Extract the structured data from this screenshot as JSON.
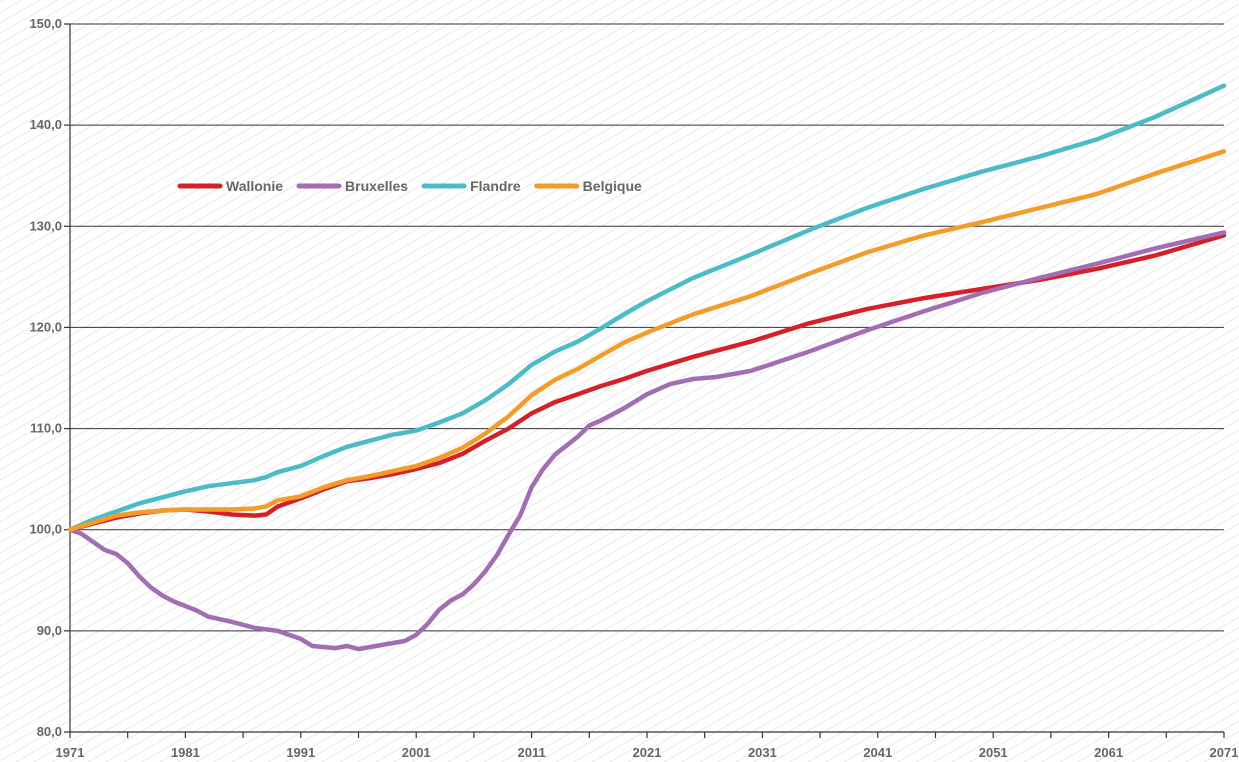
{
  "chart_data": {
    "type": "line",
    "title": "",
    "xlabel": "",
    "ylabel": "",
    "xlim": [
      1971,
      2071
    ],
    "ylim": [
      80,
      150
    ],
    "grid": true,
    "legend_position": "top-left",
    "x_ticks": [
      "1971",
      "1981",
      "1991",
      "2001",
      "2011",
      "2021",
      "2031",
      "2041",
      "2051",
      "2061",
      "2071"
    ],
    "y_ticks": [
      "80,0",
      "90,0",
      "100,0",
      "110,0",
      "120,0",
      "130,0",
      "140,0",
      "150,0"
    ],
    "series": [
      {
        "name": "Wallonie",
        "color": "#d42128",
        "points": [
          [
            1971,
            100
          ],
          [
            1973,
            100.6
          ],
          [
            1975,
            101.2
          ],
          [
            1977,
            101.6
          ],
          [
            1979,
            101.9
          ],
          [
            1981,
            102.0
          ],
          [
            1983,
            101.8
          ],
          [
            1985,
            101.5
          ],
          [
            1987,
            101.4
          ],
          [
            1988,
            101.5
          ],
          [
            1989,
            102.3
          ],
          [
            1991,
            103.1
          ],
          [
            1993,
            104.0
          ],
          [
            1995,
            104.8
          ],
          [
            1997,
            105.1
          ],
          [
            1999,
            105.5
          ],
          [
            2001,
            106.0
          ],
          [
            2003,
            106.6
          ],
          [
            2005,
            107.5
          ],
          [
            2007,
            108.8
          ],
          [
            2009,
            110.0
          ],
          [
            2011,
            111.5
          ],
          [
            2013,
            112.6
          ],
          [
            2015,
            113.4
          ],
          [
            2017,
            114.2
          ],
          [
            2019,
            114.9
          ],
          [
            2021,
            115.7
          ],
          [
            2025,
            117.1
          ],
          [
            2030,
            118.6
          ],
          [
            2035,
            120.4
          ],
          [
            2040,
            121.8
          ],
          [
            2045,
            122.9
          ],
          [
            2050,
            123.8
          ],
          [
            2055,
            124.7
          ],
          [
            2060,
            125.8
          ],
          [
            2065,
            127.1
          ],
          [
            2071,
            129.1
          ]
        ]
      },
      {
        "name": "Bruxelles",
        "color": "#a36db3",
        "points": [
          [
            1971,
            100
          ],
          [
            1972,
            99.6
          ],
          [
            1973,
            98.8
          ],
          [
            1974,
            98.0
          ],
          [
            1975,
            97.6
          ],
          [
            1976,
            96.7
          ],
          [
            1977,
            95.4
          ],
          [
            1978,
            94.3
          ],
          [
            1979,
            93.5
          ],
          [
            1980,
            92.9
          ],
          [
            1982,
            92.0
          ],
          [
            1983,
            91.4
          ],
          [
            1985,
            90.9
          ],
          [
            1987,
            90.3
          ],
          [
            1989,
            90.0
          ],
          [
            1991,
            89.2
          ],
          [
            1992,
            88.5
          ],
          [
            1994,
            88.3
          ],
          [
            1995,
            88.5
          ],
          [
            1996,
            88.2
          ],
          [
            1998,
            88.6
          ],
          [
            2000,
            89.0
          ],
          [
            2001,
            89.6
          ],
          [
            2002,
            90.7
          ],
          [
            2003,
            92.1
          ],
          [
            2004,
            93.0
          ],
          [
            2005,
            93.6
          ],
          [
            2006,
            94.6
          ],
          [
            2007,
            95.9
          ],
          [
            2008,
            97.5
          ],
          [
            2009,
            99.5
          ],
          [
            2010,
            101.4
          ],
          [
            2011,
            104.2
          ],
          [
            2012,
            106.0
          ],
          [
            2013,
            107.4
          ],
          [
            2014,
            108.3
          ],
          [
            2015,
            109.2
          ],
          [
            2016,
            110.3
          ],
          [
            2017,
            110.8
          ],
          [
            2019,
            112.0
          ],
          [
            2021,
            113.4
          ],
          [
            2023,
            114.4
          ],
          [
            2025,
            114.9
          ],
          [
            2027,
            115.1
          ],
          [
            2030,
            115.7
          ],
          [
            2035,
            117.6
          ],
          [
            2040,
            119.7
          ],
          [
            2045,
            121.6
          ],
          [
            2050,
            123.4
          ],
          [
            2055,
            124.9
          ],
          [
            2060,
            126.3
          ],
          [
            2065,
            127.8
          ],
          [
            2071,
            129.4
          ]
        ]
      },
      {
        "name": "Flandre",
        "color": "#4bbcc7",
        "points": [
          [
            1971,
            100
          ],
          [
            1973,
            101.0
          ],
          [
            1975,
            101.8
          ],
          [
            1977,
            102.6
          ],
          [
            1979,
            103.2
          ],
          [
            1981,
            103.8
          ],
          [
            1983,
            104.3
          ],
          [
            1985,
            104.6
          ],
          [
            1987,
            104.9
          ],
          [
            1988,
            105.2
          ],
          [
            1989,
            105.7
          ],
          [
            1991,
            106.3
          ],
          [
            1993,
            107.3
          ],
          [
            1995,
            108.2
          ],
          [
            1997,
            108.8
          ],
          [
            1999,
            109.4
          ],
          [
            2001,
            109.8
          ],
          [
            2003,
            110.6
          ],
          [
            2005,
            111.5
          ],
          [
            2007,
            112.8
          ],
          [
            2009,
            114.4
          ],
          [
            2011,
            116.3
          ],
          [
            2013,
            117.6
          ],
          [
            2015,
            118.6
          ],
          [
            2017,
            119.9
          ],
          [
            2019,
            121.3
          ],
          [
            2021,
            122.6
          ],
          [
            2025,
            124.9
          ],
          [
            2030,
            127.2
          ],
          [
            2035,
            129.6
          ],
          [
            2040,
            131.8
          ],
          [
            2045,
            133.7
          ],
          [
            2050,
            135.4
          ],
          [
            2055,
            136.9
          ],
          [
            2060,
            138.6
          ],
          [
            2065,
            140.8
          ],
          [
            2071,
            143.9
          ]
        ]
      },
      {
        "name": "Belgique",
        "color": "#f39c2a",
        "points": [
          [
            1971,
            100
          ],
          [
            1973,
            100.7
          ],
          [
            1975,
            101.4
          ],
          [
            1977,
            101.7
          ],
          [
            1979,
            101.9
          ],
          [
            1981,
            102.0
          ],
          [
            1983,
            102.0
          ],
          [
            1985,
            102.0
          ],
          [
            1987,
            102.1
          ],
          [
            1988,
            102.3
          ],
          [
            1989,
            102.9
          ],
          [
            1991,
            103.3
          ],
          [
            1993,
            104.2
          ],
          [
            1995,
            104.9
          ],
          [
            1997,
            105.3
          ],
          [
            1999,
            105.8
          ],
          [
            2001,
            106.3
          ],
          [
            2003,
            107.1
          ],
          [
            2005,
            108.1
          ],
          [
            2007,
            109.5
          ],
          [
            2009,
            111.2
          ],
          [
            2011,
            113.3
          ],
          [
            2013,
            114.8
          ],
          [
            2015,
            115.9
          ],
          [
            2017,
            117.2
          ],
          [
            2019,
            118.5
          ],
          [
            2021,
            119.5
          ],
          [
            2025,
            121.3
          ],
          [
            2030,
            123.1
          ],
          [
            2035,
            125.3
          ],
          [
            2040,
            127.4
          ],
          [
            2045,
            129.1
          ],
          [
            2050,
            130.4
          ],
          [
            2055,
            131.8
          ],
          [
            2060,
            133.2
          ],
          [
            2065,
            135.2
          ],
          [
            2071,
            137.4
          ]
        ]
      }
    ]
  }
}
